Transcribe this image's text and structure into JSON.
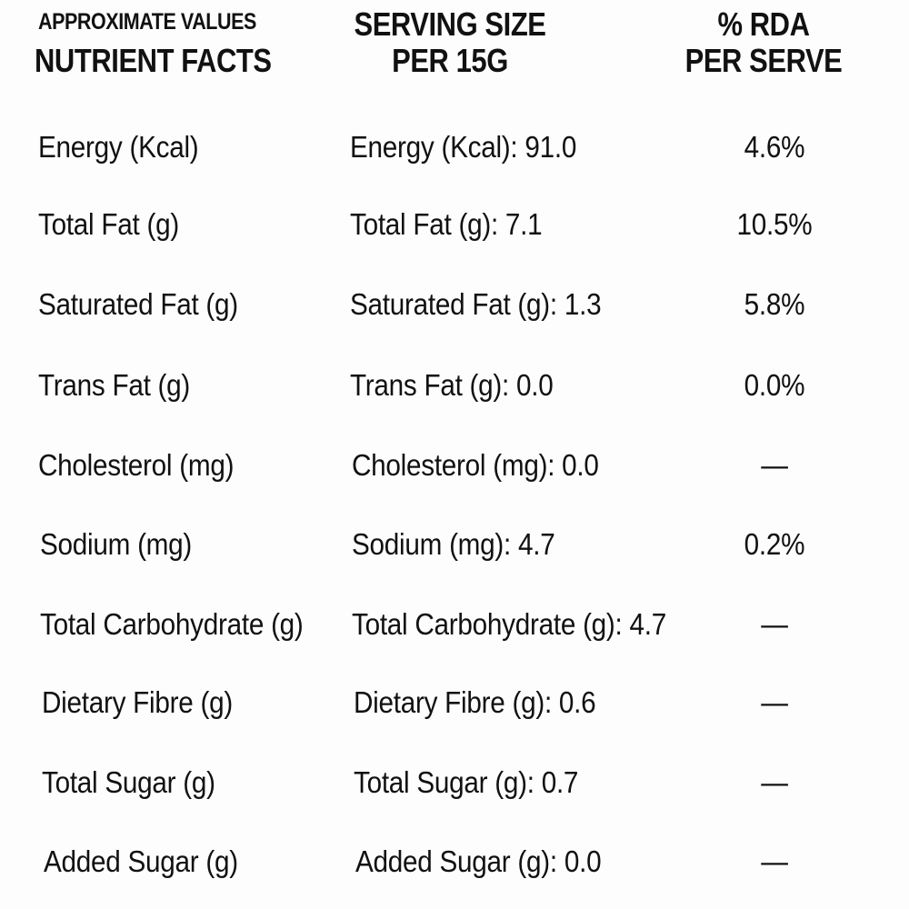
{
  "header": {
    "col1_line1": "APPROXIMATE VALUES",
    "col1_line2": "NUTRIENT FACTS",
    "col2_line1": "SERVING SIZE",
    "col2_line2": "PER 15G",
    "col3_line1": "% RDA",
    "col3_line2": "PER SERVE"
  },
  "rows": [
    {
      "nutrient": "Energy (Kcal)",
      "serving": "Energy (Kcal): 91.0",
      "rda": "4.6%"
    },
    {
      "nutrient": "Total Fat (g)",
      "serving": "Total Fat (g): 7.1",
      "rda": "10.5%"
    },
    {
      "nutrient": "Saturated Fat (g)",
      "serving": "Saturated Fat (g): 1.3",
      "rda": "5.8%"
    },
    {
      "nutrient": "Trans Fat (g)",
      "serving": "Trans Fat (g): 0.0",
      "rda": "0.0%"
    },
    {
      "nutrient": "Cholesterol (mg)",
      "serving": "Cholesterol (mg): 0.0",
      "rda": "—"
    },
    {
      "nutrient": "Sodium (mg)",
      "serving": "Sodium (mg): 4.7",
      "rda": "0.2%"
    },
    {
      "nutrient": "Total Carbohydrate (g)",
      "serving": "Total Carbohydrate (g): 4.7",
      "rda": "—"
    },
    {
      "nutrient": "Dietary Fibre (g)",
      "serving": "Dietary Fibre (g): 0.6",
      "rda": "—"
    },
    {
      "nutrient": "Total Sugar (g)",
      "serving": "Total Sugar (g): 0.7",
      "rda": "—"
    },
    {
      "nutrient": "Added Sugar (g)",
      "serving": "Added Sugar (g): 0.0",
      "rda": "—"
    }
  ]
}
